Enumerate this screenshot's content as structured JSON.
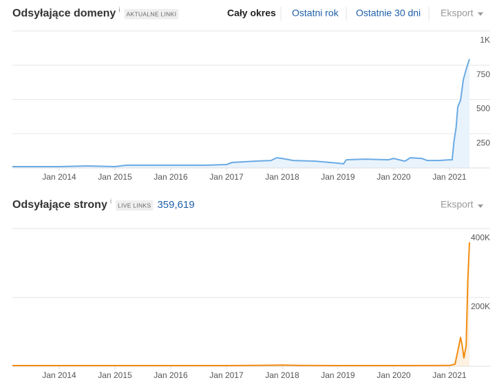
{
  "chart_data": [
    {
      "type": "line",
      "title": "Odsyłające domeny",
      "info": "i",
      "badge": "AKTUALNE LINKI",
      "periods": [
        "Cały okres",
        "Ostatni rok",
        "Ostatnie 30 dni"
      ],
      "export": "Eksport",
      "color": "#6aaae4",
      "fill_color": "#e9f3fc",
      "x": [
        2013.16,
        2014.0,
        2014.5,
        2015.0,
        2015.2,
        2016.0,
        2016.6,
        2017.0,
        2017.1,
        2017.5,
        2017.8,
        2017.9,
        2018.0,
        2018.2,
        2018.6,
        2019.0,
        2019.1,
        2019.15,
        2019.5,
        2019.9,
        2020.0,
        2020.2,
        2020.3,
        2020.5,
        2020.6,
        2020.8,
        2021.0,
        2021.05,
        2021.08,
        2021.12,
        2021.15,
        2021.2,
        2021.25,
        2021.3,
        2021.36
      ],
      "values": [
        10,
        10,
        15,
        10,
        20,
        20,
        20,
        25,
        40,
        50,
        55,
        75,
        70,
        55,
        50,
        35,
        30,
        60,
        65,
        60,
        70,
        50,
        75,
        70,
        55,
        55,
        60,
        60,
        190,
        295,
        445,
        495,
        645,
        720,
        795
      ],
      "xlim": [
        2013.16,
        2021.73
      ],
      "xticks": [
        {
          "value": 2014,
          "label": "Jan 2014"
        },
        {
          "value": 2015,
          "label": "Jan 2015"
        },
        {
          "value": 2016,
          "label": "Jan 2016"
        },
        {
          "value": 2017,
          "label": "Jan 2017"
        },
        {
          "value": 2018,
          "label": "Jan 2018"
        },
        {
          "value": 2019,
          "label": "Jan 2019"
        },
        {
          "value": 2020,
          "label": "Jan 2020"
        },
        {
          "value": 2021,
          "label": "Jan 2021"
        }
      ],
      "ylim": [
        0,
        1000
      ],
      "yticks": [
        250,
        500,
        750,
        {
          "value": 1000,
          "label": "1K"
        }
      ],
      "grid": true
    },
    {
      "type": "line",
      "title": "Odsyłające strony",
      "info": "i",
      "badge": "LIVE LINKS",
      "total": "359,619",
      "export": "Eksport",
      "color": "#f28c0f",
      "fill_color": "#fdf1e2",
      "x": [
        2013.16,
        2014.0,
        2015.0,
        2016.0,
        2017.0,
        2017.8,
        2018.0,
        2018.3,
        2019.0,
        2020.0,
        2021.0,
        2021.1,
        2021.17,
        2021.2,
        2021.23,
        2021.26,
        2021.3,
        2021.33,
        2021.36
      ],
      "values": [
        2000,
        2000,
        2000,
        2000,
        2000,
        3000,
        3500,
        2500,
        2000,
        2000,
        2500,
        6000,
        60000,
        84000,
        60000,
        24000,
        60000,
        250000,
        360000
      ],
      "xlim": [
        2013.16,
        2021.73
      ],
      "xticks": [
        {
          "value": 2014,
          "label": "Jan 2014"
        },
        {
          "value": 2015,
          "label": "Jan 2015"
        },
        {
          "value": 2016,
          "label": "Jan 2016"
        },
        {
          "value": 2017,
          "label": "Jan 2017"
        },
        {
          "value": 2018,
          "label": "Jan 2018"
        },
        {
          "value": 2019,
          "label": "Jan 2019"
        },
        {
          "value": 2020,
          "label": "Jan 2020"
        },
        {
          "value": 2021,
          "label": "Jan 2021"
        }
      ],
      "ylim": [
        0,
        400000
      ],
      "yticks": [
        {
          "value": 200000,
          "label": "200K"
        },
        {
          "value": 400000,
          "label": "400K"
        }
      ],
      "grid": true
    }
  ]
}
